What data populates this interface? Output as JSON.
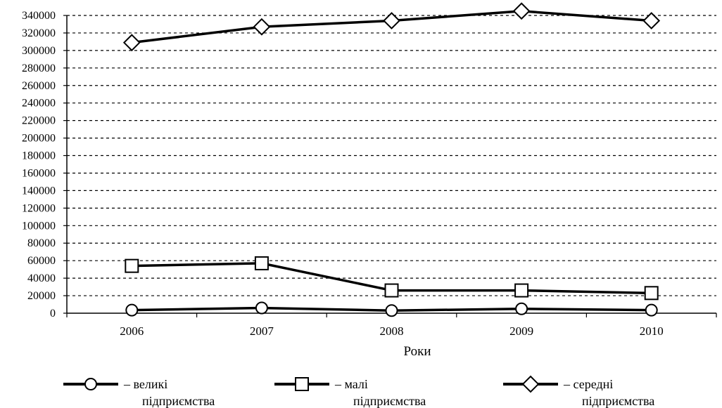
{
  "chart_data": {
    "type": "line",
    "categories": [
      "2006",
      "2007",
      "2008",
      "2009",
      "2010"
    ],
    "series": [
      {
        "name": "великі підприємства",
        "marker": "circle",
        "values": [
          3500,
          6000,
          3000,
          5000,
          3500
        ]
      },
      {
        "name": "малі підприємства",
        "marker": "square",
        "values": [
          54000,
          57000,
          26000,
          26000,
          23000
        ]
      },
      {
        "name": "середні підприємства",
        "marker": "diamond",
        "values": [
          309000,
          327000,
          334000,
          345000,
          334000
        ]
      }
    ],
    "xlabel": "Роки",
    "ylabel": "",
    "title": "",
    "ylim": [
      0,
      340000
    ],
    "ytick_step": 20000,
    "yticks": [
      "0",
      "20000",
      "40000",
      "60000",
      "80000",
      "100000",
      "120000",
      "140000",
      "160000",
      "180000",
      "200000",
      "220000",
      "240000",
      "260000",
      "280000",
      "300000",
      "320000",
      "340000"
    ],
    "grid": "horizontal dashed",
    "legend_position": "bottom",
    "legend_prefix": "–",
    "line_color": "#000000",
    "marker_fill": "#ffffff"
  }
}
